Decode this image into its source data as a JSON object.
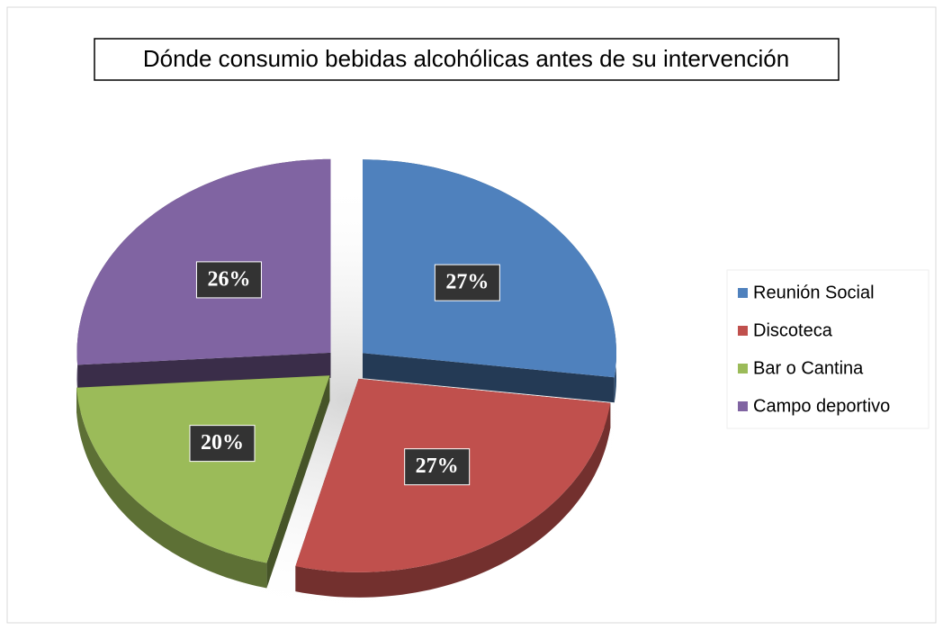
{
  "chart_data": {
    "type": "pie",
    "title": "Dónde consumio bebidas alcohólicas antes de su intervención",
    "categories": [
      "Reunión Social",
      "Discoteca",
      "Bar o Cantina",
      "Campo deportivo"
    ],
    "values": [
      27,
      27,
      20,
      26
    ],
    "value_labels": [
      "27%",
      "27%",
      "20%",
      "26%"
    ],
    "colors": [
      "#4f81bd",
      "#c0504d",
      "#9bbb59",
      "#8064a2"
    ],
    "legend": "right"
  }
}
